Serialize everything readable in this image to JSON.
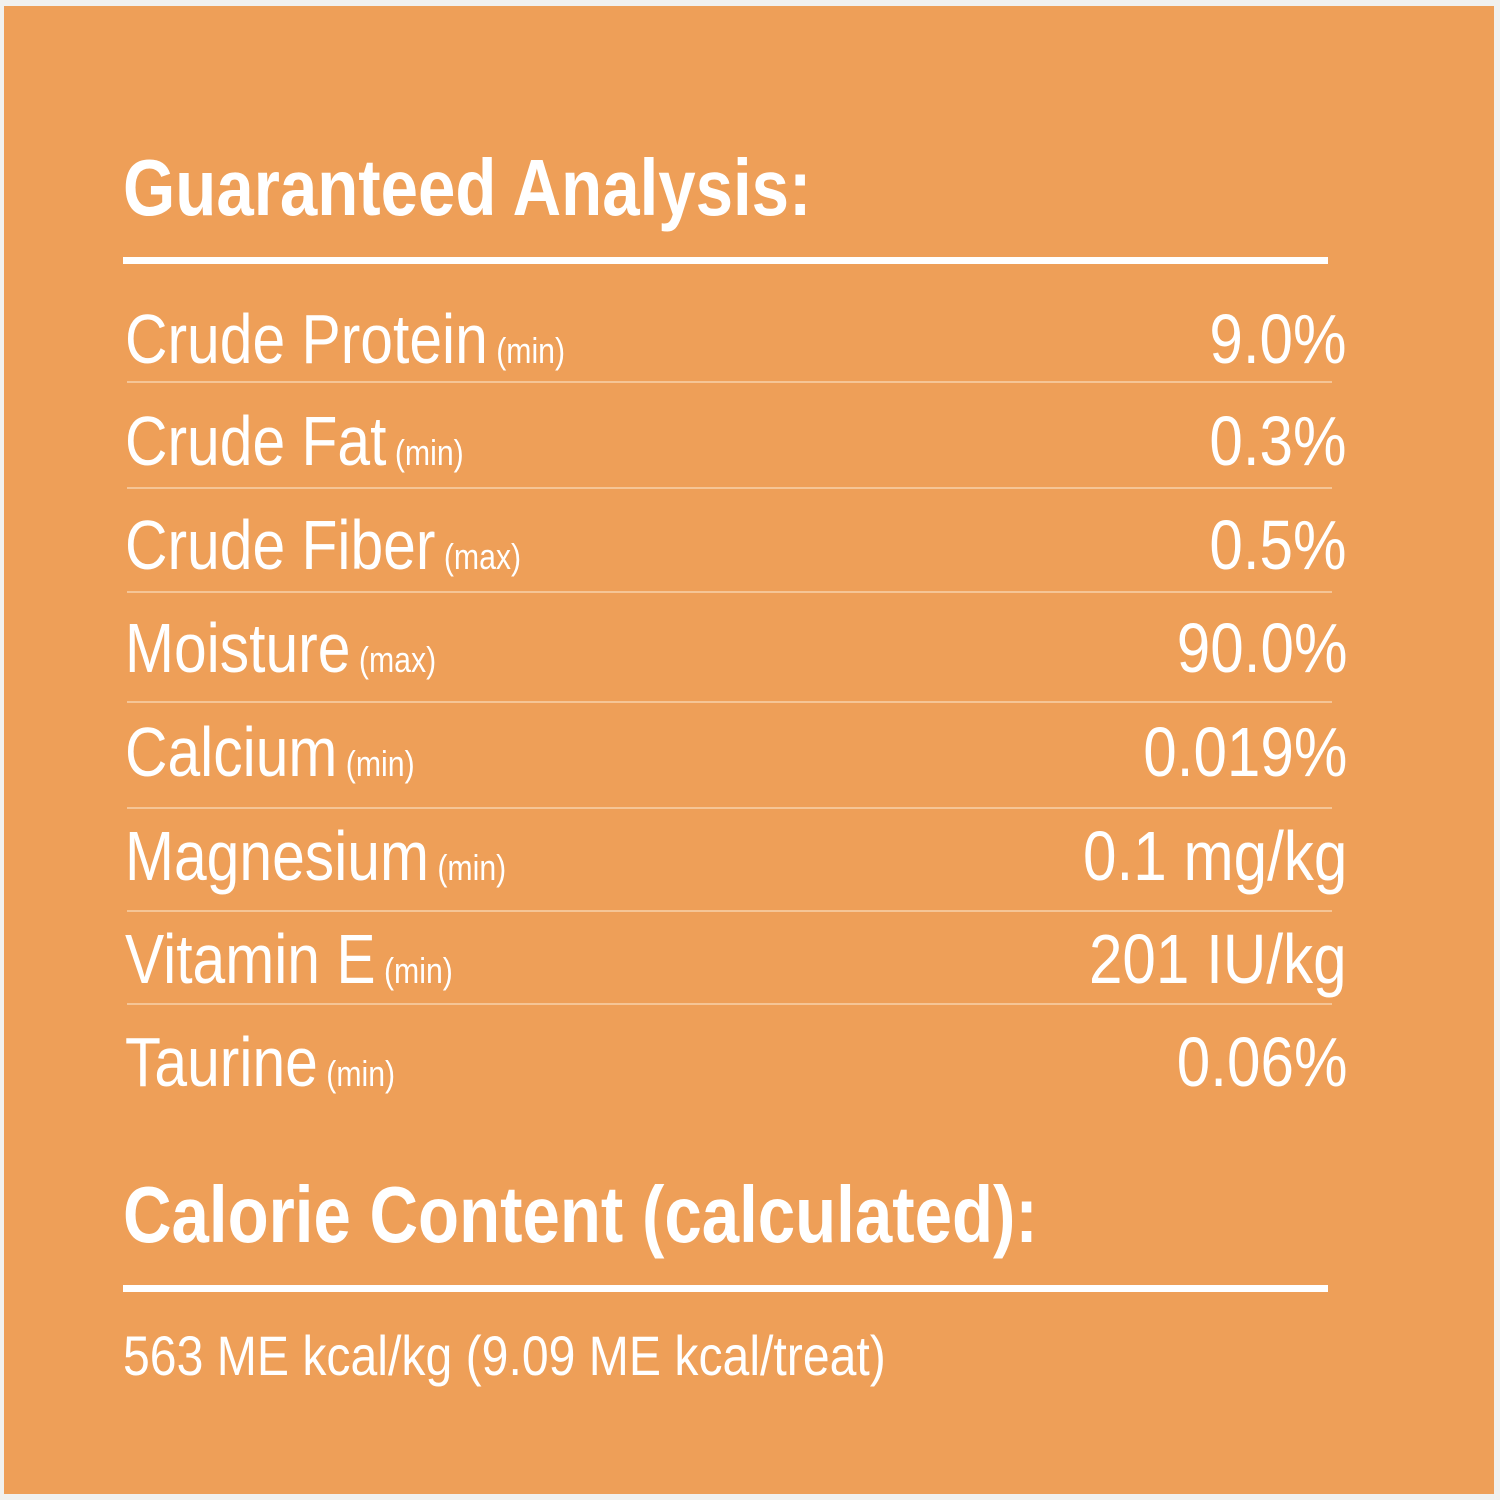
{
  "colors": {
    "background": "#ee9f58",
    "text": "#ffffff"
  },
  "guaranteed_analysis": {
    "title": "Guaranteed Analysis:",
    "rows": [
      {
        "name": "Crude Protein",
        "qualifier": "(min)",
        "value": "9.0%"
      },
      {
        "name": "Crude Fat",
        "qualifier": "(min)",
        "value": "0.3%"
      },
      {
        "name": "Crude Fiber",
        "qualifier": "(max)",
        "value": "0.5%"
      },
      {
        "name": "Moisture",
        "qualifier": "(max)",
        "value": "90.0%"
      },
      {
        "name": "Calcium",
        "qualifier": "(min)",
        "value": "0.019%"
      },
      {
        "name": "Magnesium",
        "qualifier": "(min)",
        "value": "0.1 mg/kg"
      },
      {
        "name": "Vitamin E",
        "qualifier": "(min)",
        "value": "201 IU/kg"
      },
      {
        "name": "Taurine",
        "qualifier": "(min)",
        "value": "0.06%"
      }
    ]
  },
  "calorie_content": {
    "title": "Calorie Content (calculated):",
    "value": "563 ME kcal/kg (9.09 ME kcal/treat)"
  }
}
